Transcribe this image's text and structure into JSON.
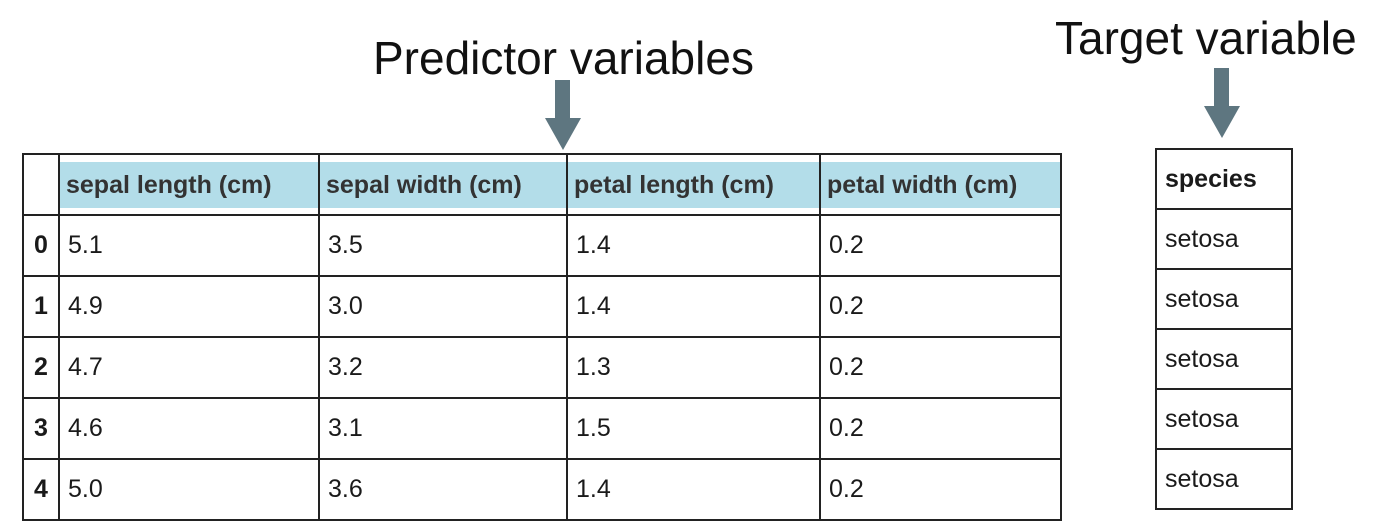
{
  "captions": {
    "predictor": "Predictor variables",
    "target": "Target variable"
  },
  "colors": {
    "header_highlight": "#b3dde9",
    "arrow": "#5e7680"
  },
  "icons": [
    "arrow-down-icon",
    "arrow-down-icon"
  ],
  "predictor_table": {
    "columns": [
      "sepal length (cm)",
      "sepal width (cm)",
      "petal length (cm)",
      "petal width (cm)"
    ],
    "rows": [
      {
        "index": "0",
        "cells": [
          "5.1",
          "3.5",
          "1.4",
          "0.2"
        ]
      },
      {
        "index": "1",
        "cells": [
          "4.9",
          "3.0",
          "1.4",
          "0.2"
        ]
      },
      {
        "index": "2",
        "cells": [
          "4.7",
          "3.2",
          "1.3",
          "0.2"
        ]
      },
      {
        "index": "3",
        "cells": [
          "4.6",
          "3.1",
          "1.5",
          "0.2"
        ]
      },
      {
        "index": "4",
        "cells": [
          "5.0",
          "3.6",
          "1.4",
          "0.2"
        ]
      }
    ]
  },
  "target_table": {
    "column": "species",
    "rows": [
      "setosa",
      "setosa",
      "setosa",
      "setosa",
      "setosa"
    ]
  }
}
